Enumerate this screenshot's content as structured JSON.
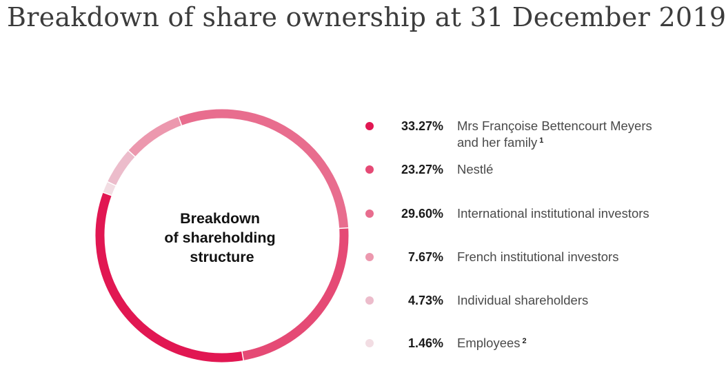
{
  "title": "Breakdown of share ownership at 31 December 2019",
  "chart_data": {
    "type": "pie",
    "center_label": [
      "Breakdown",
      "of shareholding",
      "structure"
    ],
    "slices": [
      {
        "label": "Mrs Françoise Bettencourt Meyers and her family",
        "footnote": "1",
        "value": 33.27,
        "display": "33.27%",
        "color": "#e11752"
      },
      {
        "label": "Nestlé",
        "footnote": "",
        "value": 23.27,
        "display": "23.27%",
        "color": "#e54a75"
      },
      {
        "label": "International institutional investors",
        "footnote": "",
        "value": 29.6,
        "display": "29.60%",
        "color": "#e86d8e"
      },
      {
        "label": "French institutional investors",
        "footnote": "",
        "value": 7.67,
        "display": "7.67%",
        "color": "#ec98ae"
      },
      {
        "label": "Individual shareholders",
        "footnote": "",
        "value": 4.73,
        "display": "4.73%",
        "color": "#ecbccb"
      },
      {
        "label": "Employees",
        "footnote": "2",
        "value": 1.46,
        "display": "1.46%",
        "color": "#f2dde3"
      }
    ]
  }
}
